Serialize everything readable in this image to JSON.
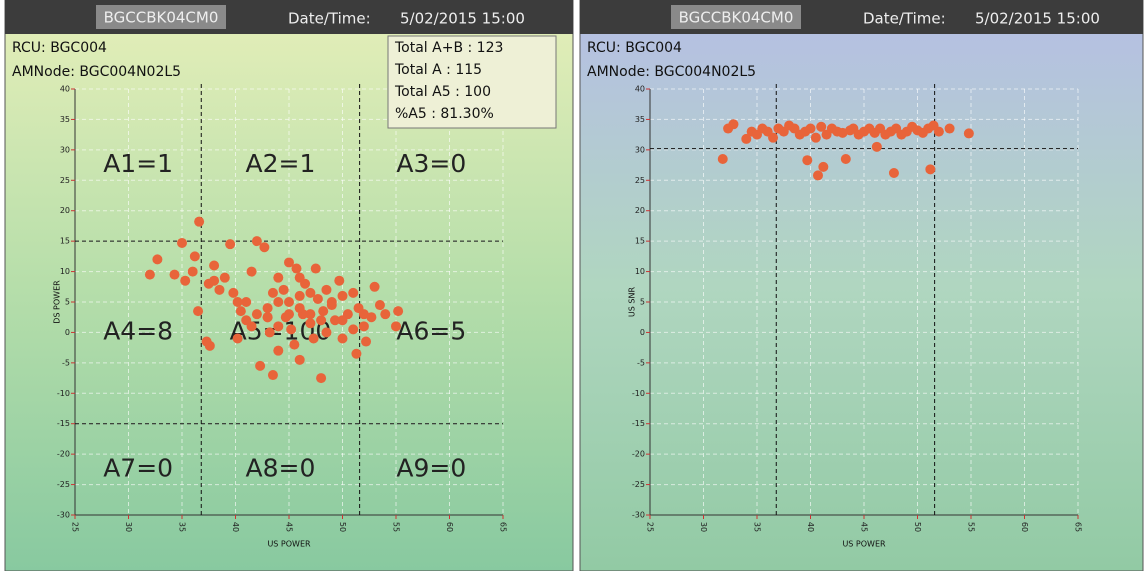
{
  "chart_data": [
    {
      "type": "scatter",
      "device": "BGCCBK04CM0",
      "datetime_label": "Date/Time:",
      "datetime": "5/02/2015 15:00",
      "info": [
        "RCU: BGC004",
        "AMNode: BGC004N02L5"
      ],
      "totals": [
        "Total A+B : 123",
        "Total A   : 115",
        "Total A5 : 100",
        "%A5 :     81.30%"
      ],
      "zone_labels": [
        "A1=1",
        "A2=1",
        "A3=0",
        "A4=8",
        "A5=100",
        "A6=5",
        "A7=0",
        "A8=0",
        "A9=0"
      ],
      "x_label": "US POWER",
      "y_label": "DS POWER",
      "xlim": [
        25,
        65
      ],
      "ylim": [
        -30,
        40
      ],
      "xticks": [
        25,
        30,
        35,
        40,
        45,
        50,
        55,
        60,
        65
      ],
      "yticks": [
        -30,
        -25,
        -20,
        -15,
        -10,
        -5,
        0,
        5,
        10,
        15,
        20,
        25,
        30,
        35,
        40
      ],
      "ref_x": [
        36.8,
        51.6
      ],
      "ref_y": [
        15,
        -15
      ],
      "grid": true,
      "series": [
        {
          "color": "#e8643a",
          "x": [
            32,
            32.7,
            34.3,
            35,
            35.3,
            36,
            36.2,
            36.6,
            36.5,
            37.5,
            37.3,
            37.6,
            38,
            38,
            38.5,
            39,
            39.5,
            39.8,
            40.2,
            40.5,
            40.2,
            41,
            41.5,
            41.5,
            42,
            42.3,
            42.7,
            43,
            43.2,
            43.5,
            43.5,
            44,
            44,
            44.5,
            44.7,
            45,
            45,
            45.2,
            45.5,
            45.7,
            46,
            46,
            46.3,
            46.5,
            47,
            47,
            47.3,
            47.5,
            47.7,
            48,
            48.2,
            48.5,
            48.5,
            49,
            49.3,
            49.7,
            50,
            50,
            50.5,
            51,
            51,
            51.3,
            51.5,
            52,
            52.2,
            52,
            52.7,
            53,
            53.5,
            54,
            55.2,
            55,
            41,
            42,
            44,
            46,
            48,
            49,
            47,
            45,
            43,
            50,
            46,
            44,
            43
          ],
          "values": [
            9.5,
            12,
            9.5,
            14.7,
            8.5,
            10,
            12.5,
            18.2,
            3.5,
            8,
            -1.5,
            -2.2,
            11,
            8.5,
            7,
            9,
            14.5,
            6.5,
            5,
            3.5,
            -1,
            2,
            10,
            1,
            15,
            -5.5,
            14,
            4,
            0,
            -7,
            6.5,
            9,
            -3,
            7,
            2.5,
            11.5,
            5,
            0.5,
            -2,
            10.5,
            6,
            -4.5,
            3,
            8,
            6.5,
            1.5,
            -1,
            10.5,
            5.5,
            -7.5,
            3.5,
            0,
            7,
            4.5,
            2,
            8.5,
            -1,
            6,
            3,
            0.5,
            6.5,
            -3.5,
            4,
            1,
            -1.5,
            3,
            2.5,
            7.5,
            4.5,
            3,
            3.5,
            1,
            5,
            3,
            1,
            4,
            2,
            5,
            3,
            3,
            2.5,
            2,
            9,
            5,
            2.5
          ]
        }
      ]
    },
    {
      "type": "scatter",
      "device": "BGCCBK04CM0",
      "datetime_label": "Date/Time:",
      "datetime": "5/02/2015 15:00",
      "info": [
        "RCU: BGC004",
        "AMNode: BGC004N02L5"
      ],
      "x_label": "US POWER",
      "y_label": "US SNR",
      "xlim": [
        25,
        65
      ],
      "ylim": [
        -30,
        40
      ],
      "xticks": [
        25,
        30,
        35,
        40,
        45,
        50,
        55,
        60,
        65
      ],
      "yticks": [
        -30,
        -25,
        -20,
        -15,
        -10,
        -5,
        0,
        5,
        10,
        15,
        20,
        25,
        30,
        35,
        40
      ],
      "ref_x": [
        36.8,
        51.6
      ],
      "ref_y": [
        30.2
      ],
      "grid": true,
      "series": [
        {
          "color": "#e8643a",
          "x": [
            31.8,
            32.3,
            32.8,
            34,
            34.5,
            35,
            35.5,
            36,
            36.5,
            37,
            37.5,
            38,
            38.5,
            39,
            39.5,
            39.7,
            40,
            40.5,
            40.7,
            41,
            41.2,
            41.5,
            42,
            42.5,
            43,
            43.3,
            43.7,
            44,
            44.5,
            45,
            45.5,
            46,
            46.2,
            46.5,
            47,
            47.5,
            47.8,
            48,
            48.5,
            49,
            49.5,
            50,
            50.5,
            51,
            51.2,
            51.5,
            52,
            53,
            54.8
          ],
          "values": [
            28.5,
            33.5,
            34.2,
            31.8,
            33,
            32.5,
            33.5,
            33,
            32,
            33.5,
            33,
            34,
            33.5,
            32.5,
            33,
            28.3,
            33.5,
            32,
            25.8,
            33.8,
            27.2,
            32.5,
            33.5,
            33,
            32.8,
            28.5,
            33.2,
            33.5,
            32.5,
            33,
            33.5,
            32.8,
            30.5,
            33.5,
            32.5,
            33,
            26.2,
            33.5,
            32.5,
            33,
            33.8,
            33.2,
            32.8,
            33.5,
            26.8,
            34,
            33,
            33.5,
            32.7
          ]
        }
      ]
    }
  ]
}
